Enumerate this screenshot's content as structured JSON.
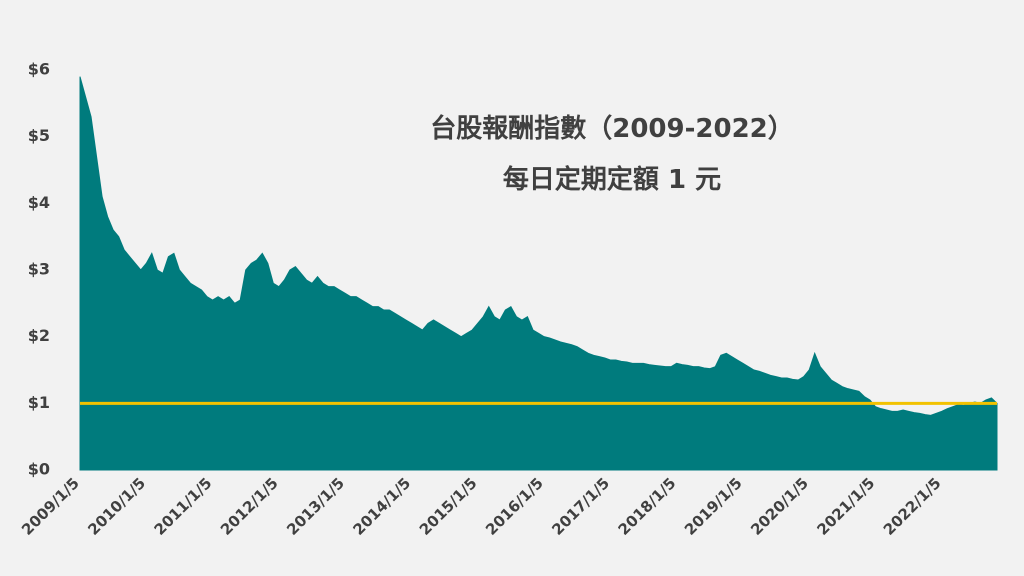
{
  "chart_data": {
    "type": "area",
    "title": "台股報酬指數（2009-2022）",
    "subtitle": "每日定期定額 1 元",
    "color": "#007b7d",
    "reference_line": {
      "value": 1,
      "color": "#f2c200"
    },
    "ylim": [
      0,
      6
    ],
    "yticks": [
      {
        "value": 0,
        "label": "$0"
      },
      {
        "value": 1,
        "label": "$1"
      },
      {
        "value": 2,
        "label": "$2"
      },
      {
        "value": 3,
        "label": "$3"
      },
      {
        "value": 4,
        "label": "$4"
      },
      {
        "value": 5,
        "label": "$5"
      },
      {
        "value": 6,
        "label": "$6"
      }
    ],
    "categories": [
      "2009/1/5",
      null,
      null,
      null,
      null,
      null,
      null,
      null,
      null,
      null,
      null,
      null,
      "2010/1/5",
      null,
      null,
      null,
      null,
      null,
      null,
      null,
      null,
      null,
      null,
      null,
      "2011/1/5",
      null,
      null,
      null,
      null,
      null,
      null,
      null,
      null,
      null,
      null,
      null,
      "2012/1/5",
      null,
      null,
      null,
      null,
      null,
      null,
      null,
      null,
      null,
      null,
      null,
      "2013/1/5",
      null,
      null,
      null,
      null,
      null,
      null,
      null,
      null,
      null,
      null,
      null,
      "2014/1/5",
      null,
      null,
      null,
      null,
      null,
      null,
      null,
      null,
      null,
      null,
      null,
      "2015/1/5",
      null,
      null,
      null,
      null,
      null,
      null,
      null,
      null,
      null,
      null,
      null,
      "2016/1/5",
      null,
      null,
      null,
      null,
      null,
      null,
      null,
      null,
      null,
      null,
      null,
      "2017/1/5",
      null,
      null,
      null,
      null,
      null,
      null,
      null,
      null,
      null,
      null,
      null,
      "2018/1/5",
      null,
      null,
      null,
      null,
      null,
      null,
      null,
      null,
      null,
      null,
      null,
      "2019/1/5",
      null,
      null,
      null,
      null,
      null,
      null,
      null,
      null,
      null,
      null,
      null,
      "2020/1/5",
      null,
      null,
      null,
      null,
      null,
      null,
      null,
      null,
      null,
      null,
      null,
      "2021/1/5",
      null,
      null,
      null,
      null,
      null,
      null,
      null,
      null,
      null,
      null,
      null,
      "2022/1/5",
      null,
      null,
      null,
      null,
      null,
      null,
      null,
      null,
      null,
      null
    ],
    "values": [
      5.9,
      5.6,
      5.3,
      4.7,
      4.1,
      3.8,
      3.6,
      3.5,
      3.3,
      3.2,
      3.1,
      3.0,
      3.1,
      3.25,
      3.0,
      2.95,
      3.2,
      3.25,
      3.0,
      2.9,
      2.8,
      2.75,
      2.7,
      2.6,
      2.55,
      2.6,
      2.55,
      2.6,
      2.5,
      2.55,
      3.0,
      3.1,
      3.15,
      3.25,
      3.1,
      2.8,
      2.75,
      2.85,
      3.0,
      3.05,
      2.95,
      2.85,
      2.8,
      2.9,
      2.8,
      2.75,
      2.75,
      2.7,
      2.65,
      2.6,
      2.6,
      2.55,
      2.5,
      2.45,
      2.45,
      2.4,
      2.4,
      2.35,
      2.3,
      2.25,
      2.2,
      2.15,
      2.1,
      2.2,
      2.25,
      2.2,
      2.15,
      2.1,
      2.05,
      2.0,
      2.05,
      2.1,
      2.2,
      2.3,
      2.45,
      2.3,
      2.25,
      2.4,
      2.45,
      2.3,
      2.25,
      2.3,
      2.1,
      2.05,
      2.0,
      1.98,
      1.95,
      1.92,
      1.9,
      1.88,
      1.85,
      1.8,
      1.75,
      1.72,
      1.7,
      1.68,
      1.65,
      1.65,
      1.63,
      1.62,
      1.6,
      1.6,
      1.6,
      1.58,
      1.57,
      1.56,
      1.55,
      1.55,
      1.6,
      1.58,
      1.57,
      1.55,
      1.55,
      1.53,
      1.52,
      1.55,
      1.72,
      1.75,
      1.7,
      1.65,
      1.6,
      1.55,
      1.5,
      1.48,
      1.45,
      1.42,
      1.4,
      1.38,
      1.38,
      1.36,
      1.35,
      1.4,
      1.5,
      1.75,
      1.55,
      1.45,
      1.35,
      1.3,
      1.25,
      1.22,
      1.2,
      1.18,
      1.1,
      1.05,
      0.95,
      0.92,
      0.9,
      0.88,
      0.88,
      0.9,
      0.88,
      0.86,
      0.85,
      0.83,
      0.82,
      0.85,
      0.88,
      0.92,
      0.95,
      0.98,
      0.97,
      1.0,
      1.02,
      1.0,
      1.05,
      1.08,
      1.0
    ]
  }
}
